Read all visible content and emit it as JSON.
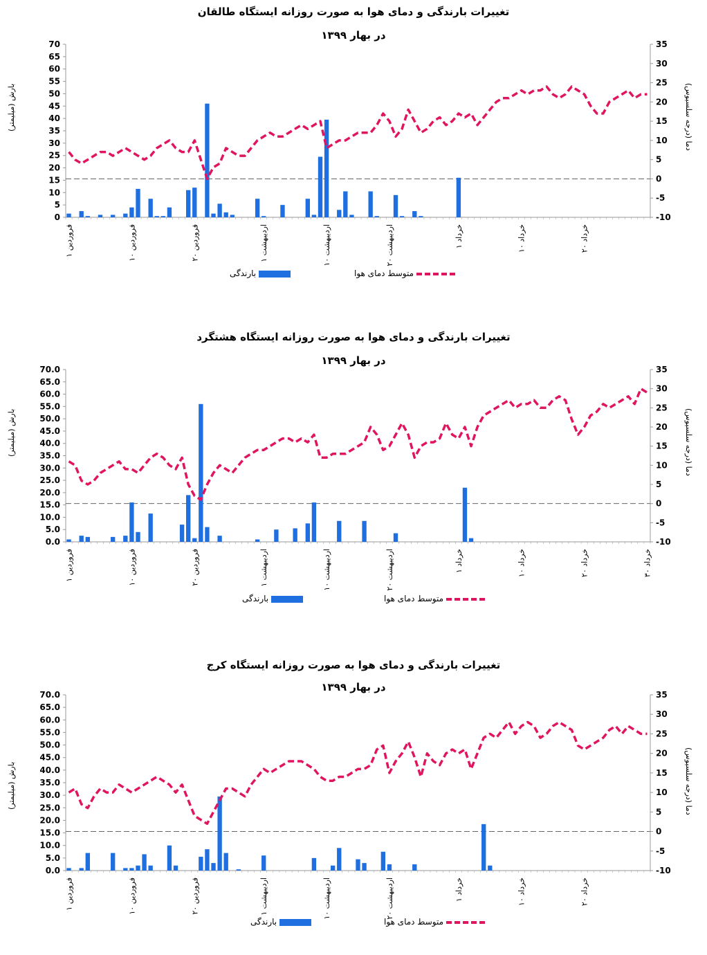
{
  "chart_data": [
    {
      "type": "bar+line",
      "title": "تغییرات بارندگی و دمای هوا به صورت روزانه ایستگاه طالقان",
      "subtitle": "در بهار ۱۳۹۹",
      "ylabel_left": "بارش (میلیمتر)",
      "ylabel_right": "دما (درجه سلسیوس)",
      "y_left_ticks": [
        "0",
        "5",
        "10",
        "15",
        "20",
        "25",
        "30",
        "35",
        "40",
        "45",
        "50",
        "55",
        "60",
        "65",
        "70"
      ],
      "y_right_ticks": [
        "-10",
        "-5",
        "0",
        "5",
        "10",
        "15",
        "20",
        "25",
        "30",
        "35"
      ],
      "ylim_left": [
        0,
        70
      ],
      "ylim_right": [
        -10,
        35
      ],
      "ndays": 93,
      "x_ticks": [
        {
          "day": 1,
          "label": "۱ فروردین"
        },
        {
          "day": 11,
          "label": "۱۰ فروردین"
        },
        {
          "day": 21,
          "label": "۲۰ فروردین"
        },
        {
          "day": 32,
          "label": "۱ اردیبهشت"
        },
        {
          "day": 42,
          "label": "۱۰ اردیبهشت"
        },
        {
          "day": 52,
          "label": "۲۰ اردیبهشت"
        },
        {
          "day": 63,
          "label": "۱ خرداد"
        },
        {
          "day": 73,
          "label": "۱۰ خرداد"
        },
        {
          "day": 83,
          "label": "۲۰ خرداد"
        }
      ],
      "precip": [
        1.5,
        0,
        2.5,
        0.5,
        0,
        1,
        0,
        1,
        0,
        1.5,
        4,
        11.5,
        0,
        7.5,
        0.5,
        0.5,
        4,
        0,
        0,
        11,
        12,
        0,
        46,
        1.5,
        5.5,
        2,
        1,
        0,
        0,
        0,
        7.5,
        0.5,
        0,
        0,
        5,
        0,
        0,
        0,
        7.5,
        1,
        24.5,
        39.5,
        0,
        3,
        10.5,
        1,
        0,
        0,
        10.5,
        0.5,
        0,
        0,
        9,
        0.5,
        0,
        2.5,
        0.5,
        0,
        0,
        0,
        0,
        0,
        16,
        0,
        0,
        0,
        0,
        0,
        0,
        0,
        0,
        0,
        0,
        0,
        0,
        0,
        0,
        0,
        0,
        0,
        0,
        0,
        0,
        0,
        0,
        0,
        0,
        0,
        0,
        0,
        0,
        0,
        0
      ],
      "temp": [
        7,
        5,
        4,
        5,
        6,
        7,
        7,
        6,
        7,
        8,
        7,
        6,
        5,
        6,
        8,
        9,
        10,
        8,
        7,
        7,
        10,
        5,
        0,
        3,
        4,
        8,
        7,
        6,
        6,
        8,
        10,
        11,
        12,
        11,
        11,
        12,
        13,
        14,
        13,
        14,
        15,
        8,
        9,
        10,
        10,
        11,
        12,
        12,
        12,
        14,
        17,
        15,
        11,
        13,
        18,
        15,
        12,
        13,
        15,
        16,
        14,
        15,
        17,
        16,
        17,
        14,
        16,
        18,
        20,
        21,
        21,
        22,
        23,
        22,
        23,
        23,
        24,
        22,
        21,
        22,
        24,
        23,
        22,
        19,
        17,
        17,
        20,
        21,
        22,
        23,
        21,
        22,
        22
      ],
      "legend_precip": "بارندگی",
      "legend_temp": "متوسط دمای هوا"
    },
    {
      "type": "bar+line",
      "title": "تغییرات بارندگی و دمای هوا به صورت روزانه ایستگاه هشتگرد",
      "subtitle": "در بهار ۱۳۹۹",
      "ylabel_left": "بارش (میلیمتر)",
      "ylabel_right": "دما (درجه سلسیوس)",
      "y_left_ticks": [
        "0.0",
        "5.0",
        "10.0",
        "15.0",
        "20.0",
        "25.0",
        "30.0",
        "35.0",
        "40.0",
        "45.0",
        "50.0",
        "55.0",
        "60.0",
        "65.0",
        "70.0"
      ],
      "y_right_ticks": [
        "-10",
        "-5",
        "0",
        "5",
        "10",
        "15",
        "20",
        "25",
        "30",
        "35"
      ],
      "ylim_left": [
        0,
        70
      ],
      "ylim_right": [
        -10,
        35
      ],
      "ndays": 93,
      "x_ticks": [
        {
          "day": 1,
          "label": "۱ فروردین"
        },
        {
          "day": 11,
          "label": "۱۰ فروردین"
        },
        {
          "day": 21,
          "label": "۲۰ فروردین"
        },
        {
          "day": 32,
          "label": "۱ اردیبهشت"
        },
        {
          "day": 42,
          "label": "۱۰ اردیبهشت"
        },
        {
          "day": 52,
          "label": "۲۰ اردیبهشت"
        },
        {
          "day": 63,
          "label": "۱ خرداد"
        },
        {
          "day": 73,
          "label": "۱۰ خرداد"
        },
        {
          "day": 83,
          "label": "۲۰ خرداد"
        },
        {
          "day": 93,
          "label": "۳۰ خرداد"
        }
      ],
      "precip": [
        1,
        0,
        2.5,
        2,
        0,
        0,
        0,
        2,
        0,
        2.5,
        16,
        4,
        0,
        11.5,
        0,
        0,
        0,
        0,
        7,
        19,
        1.5,
        56,
        6,
        0,
        2.5,
        0,
        0,
        0,
        0,
        0,
        1,
        0,
        0,
        5,
        0,
        0,
        5.5,
        0,
        7.5,
        16,
        0,
        0,
        0,
        8.5,
        0,
        0,
        0,
        8.5,
        0,
        0,
        0,
        0,
        3.5,
        0,
        0,
        0,
        0,
        0,
        0,
        0,
        0,
        0,
        0,
        22,
        1.5,
        0,
        0,
        0,
        0,
        0,
        0,
        0,
        0,
        0,
        0,
        0,
        0,
        0,
        0,
        0,
        0,
        0,
        0,
        0,
        0,
        0,
        0,
        0,
        0,
        0,
        0,
        0,
        0
      ],
      "temp": [
        11,
        10,
        6,
        5,
        6,
        8,
        9,
        10,
        11,
        9,
        9,
        8,
        10,
        12,
        13,
        12,
        10,
        9,
        12,
        5,
        2,
        1,
        5,
        8,
        10,
        9,
        8,
        10,
        12,
        13,
        14,
        14,
        15,
        16,
        17,
        17,
        16,
        17,
        16,
        18,
        12,
        12,
        13,
        13,
        13,
        14,
        15,
        16,
        20,
        18,
        14,
        15,
        18,
        21,
        18,
        12,
        15,
        16,
        16,
        17,
        21,
        18,
        17,
        20,
        15,
        20,
        23,
        24,
        25,
        26,
        27,
        25,
        26,
        26,
        27,
        25,
        25,
        27,
        28,
        27,
        22,
        18,
        20,
        23,
        24,
        26,
        25,
        26,
        27,
        28,
        26,
        30,
        29
      ],
      "legend_precip": "بارندگی",
      "legend_temp": "متوسط دمای هوا"
    },
    {
      "type": "bar+line",
      "title": "تغییرات بارندگی و دمای هوا به صورت روزانه ایستگاه کرج",
      "subtitle": "در بهار ۱۳۹۹",
      "ylabel_left": "بارش (میلیمتر)",
      "ylabel_right": "دما (درجه سلسیوس)",
      "y_left_ticks": [
        "0.0",
        "5.0",
        "10.0",
        "15.0",
        "20.0",
        "25.0",
        "30.0",
        "35.0",
        "40.0",
        "45.0",
        "50.0",
        "55.0",
        "60.0",
        "65.0",
        "70.0"
      ],
      "y_right_ticks": [
        "-10",
        "-5",
        "0",
        "5",
        "10",
        "15",
        "20",
        "25",
        "30",
        "35"
      ],
      "ylim_left": [
        0,
        70
      ],
      "ylim_right": [
        -10,
        35
      ],
      "ndays": 93,
      "x_ticks": [
        {
          "day": 1,
          "label": "۱ فروردین"
        },
        {
          "day": 11,
          "label": "۱۰ فروردین"
        },
        {
          "day": 21,
          "label": "۲۰ فروردین"
        },
        {
          "day": 32,
          "label": "۱ اردیبهشت"
        },
        {
          "day": 42,
          "label": "۱۰ اردیبهشت"
        },
        {
          "day": 52,
          "label": "۲۰ اردیبهشت"
        },
        {
          "day": 63,
          "label": "۱ خرداد"
        },
        {
          "day": 73,
          "label": "۱۰ خرداد"
        },
        {
          "day": 83,
          "label": "۲۰ خرداد"
        }
      ],
      "precip": [
        1,
        0,
        1,
        7,
        0,
        0,
        0,
        7,
        0,
        1,
        1,
        2,
        6.5,
        2,
        0,
        0,
        10,
        2,
        0,
        0,
        0,
        5.5,
        8.5,
        3,
        29.5,
        7,
        0,
        0.5,
        0,
        0,
        0,
        6,
        0,
        0,
        0,
        0,
        0,
        0,
        0,
        5,
        0,
        0,
        2,
        9,
        0,
        0,
        4.5,
        3,
        0,
        0,
        7.5,
        2.5,
        0,
        0,
        0,
        2.5,
        0,
        0,
        0,
        0,
        0,
        0,
        0,
        0,
        0,
        0,
        18.5,
        2,
        0,
        0,
        0,
        0,
        0,
        0,
        0,
        0,
        0,
        0,
        0,
        0,
        0,
        0,
        0,
        0,
        0,
        0,
        0,
        0,
        0,
        0,
        0,
        0,
        0
      ],
      "temp": [
        10,
        11,
        7,
        6,
        9,
        11,
        10,
        10,
        12,
        11,
        10,
        11,
        12,
        13,
        14,
        13,
        12,
        10,
        12,
        8,
        4,
        3,
        2,
        5,
        8,
        11,
        11,
        10,
        9,
        12,
        14,
        16,
        15,
        16,
        17,
        18,
        18,
        18,
        17,
        16,
        14,
        13,
        13,
        14,
        14,
        15,
        16,
        16,
        17,
        21,
        22,
        15,
        18,
        20,
        23,
        19,
        14,
        20,
        18,
        17,
        20,
        21,
        20,
        21,
        16,
        20,
        24,
        25,
        24,
        26,
        28,
        25,
        27,
        28,
        27,
        24,
        25,
        27,
        28,
        27,
        26,
        22,
        21,
        22,
        23,
        24,
        26,
        27,
        25,
        27,
        26,
        25,
        25
      ],
      "legend_precip": "بارندگی",
      "legend_temp": "متوسط دمای هوا"
    }
  ],
  "colors": {
    "precip_bar": "#1f6fe0",
    "temp_line": "#e0155f",
    "zero_line": "#666666",
    "axis": "#999999"
  }
}
